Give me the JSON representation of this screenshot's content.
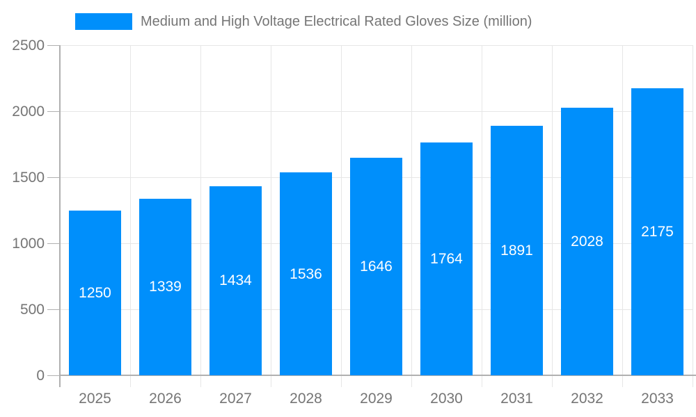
{
  "legend": {
    "label": "Medium and High Voltage Electrical Rated Gloves Size (million)"
  },
  "chart_data": {
    "type": "bar",
    "title": "",
    "xlabel": "",
    "ylabel": "",
    "series_name": "Medium and High Voltage Electrical Rated Gloves Size (million)",
    "categories": [
      "2025",
      "2026",
      "2027",
      "2028",
      "2029",
      "2030",
      "2031",
      "2032",
      "2033"
    ],
    "values": [
      1250,
      1339,
      1434,
      1536,
      1646,
      1764,
      1891,
      2028,
      2175
    ],
    "ylim": [
      0,
      2500
    ],
    "yticks": [
      0,
      500,
      1000,
      1500,
      2000,
      2500
    ],
    "grid": "on",
    "legend_position": "top",
    "value_label_position": "inside-center"
  },
  "colors": {
    "bar": "#008ffb",
    "grid": "#e6e6e6",
    "axis": "#b0b0b0",
    "tick_text": "#757575",
    "legend_text": "#757575",
    "value_text": "#ffffff",
    "background": "#ffffff"
  }
}
